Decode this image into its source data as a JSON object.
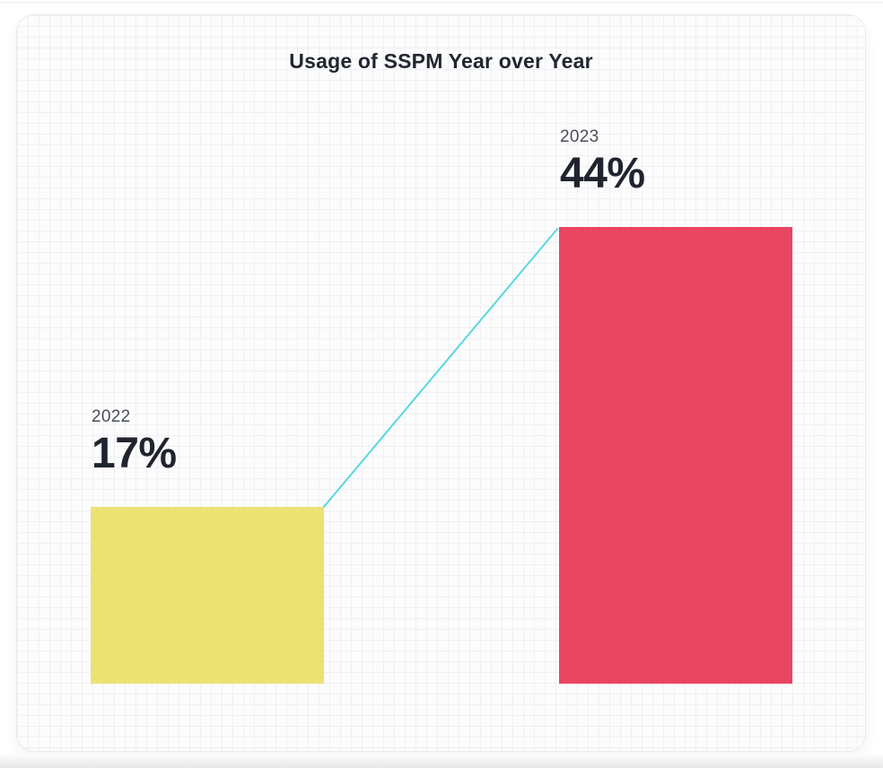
{
  "chart_data": {
    "type": "bar",
    "title": "Usage of SSPM Year over Year",
    "categories": [
      "2022",
      "2023"
    ],
    "values": [
      17,
      44
    ],
    "unit": "%",
    "value_labels": [
      "17%",
      "44%"
    ],
    "series_colors": [
      "#ece274",
      "#e94663"
    ],
    "connector_line_color": "#58d8dd",
    "xlabel": "",
    "ylabel": "",
    "axes_visible": false,
    "grid": "graph-paper-background",
    "legend": "none"
  },
  "card": {
    "background": "#fcfcfd",
    "grid_line_color": "#eff0f3",
    "border_color": "#ebebee"
  },
  "text_colors": {
    "title": "#21262f",
    "year_label": "#4a4f58",
    "value_label": "#20242e"
  }
}
